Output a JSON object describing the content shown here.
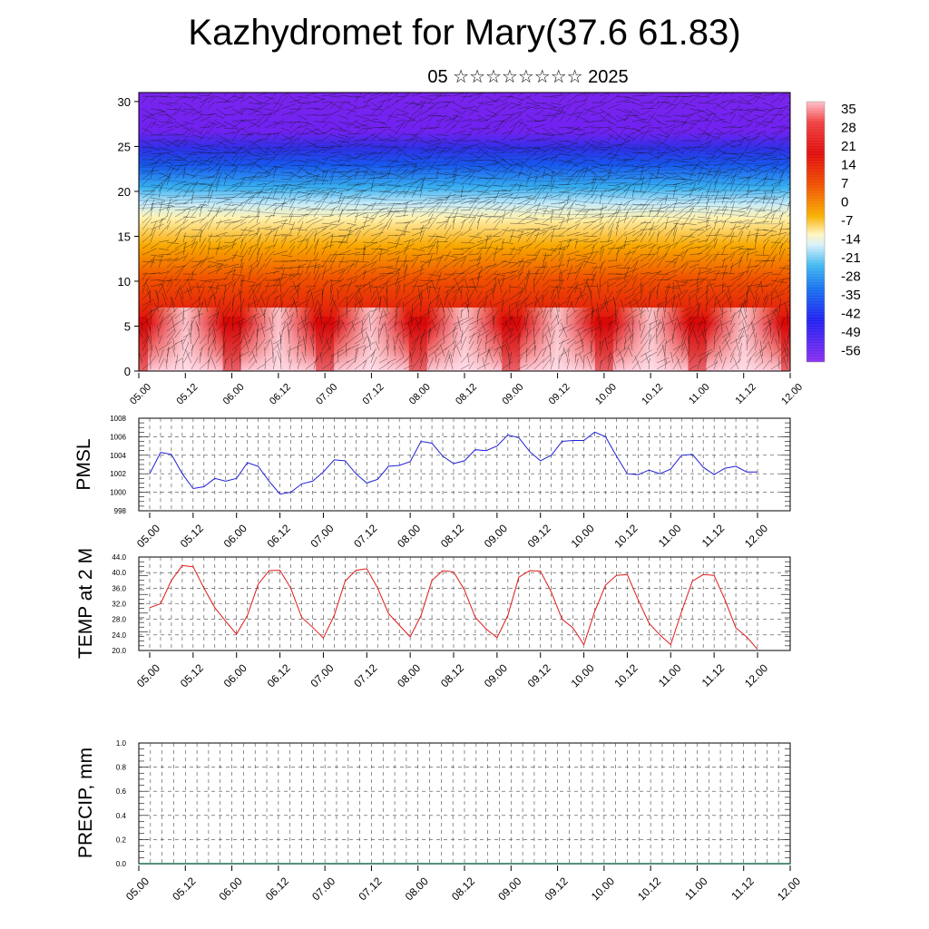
{
  "title": "Kazhydromet for Mary(37.6 61.83)",
  "subtitle": "05 ☆☆☆☆☆☆☆☆ 2025",
  "time_ticks": [
    "05.00",
    "05.12",
    "06.00",
    "06.12",
    "07.00",
    "07.12",
    "08.00",
    "08.12",
    "09.00",
    "09.12",
    "10.00",
    "10.12",
    "11.00",
    "11.12",
    "12.00"
  ],
  "colors": {
    "pmsl_line": "#1f1fd6",
    "temp_line": "#e01818",
    "precip_line": "#1f6b4f"
  },
  "chart_data": [
    {
      "type": "heatmap",
      "name": "temperature-wind cross-section",
      "x_ticks": [
        "05.00",
        "05.12",
        "06.00",
        "06.12",
        "07.00",
        "07.12",
        "08.00",
        "08.12",
        "09.00",
        "09.12",
        "10.00",
        "10.12",
        "11.00",
        "11.12",
        "12.00"
      ],
      "y_ticks": [
        0,
        5,
        10,
        15,
        20,
        25,
        30
      ],
      "ylim": [
        0,
        31
      ],
      "colorbar_labels": [
        "35",
        "28",
        "21",
        "14",
        "7",
        "0",
        "-7",
        "-14",
        "-21",
        "-28",
        "-35",
        "-42",
        "-49",
        "-56"
      ],
      "colorbar_range": [
        -60,
        38
      ],
      "overlay": "wind barbs",
      "approx_temperature_by_level": [
        {
          "level": 0,
          "value": 35
        },
        {
          "level": 5,
          "value": 26
        },
        {
          "level": 10,
          "value": 17
        },
        {
          "level": 15,
          "value": 3
        },
        {
          "level": 18,
          "value": -12
        },
        {
          "level": 20,
          "value": -30
        },
        {
          "level": 23,
          "value": -45
        },
        {
          "level": 25,
          "value": -54
        },
        {
          "level": 31,
          "value": -60
        }
      ]
    },
    {
      "type": "line",
      "ylabel": "PMSL",
      "ylim": [
        998,
        1008
      ],
      "y_ticks": [
        "998",
        "1000",
        "1002",
        "1004",
        "1006",
        "1008"
      ],
      "x_ticks": [
        "05.00",
        "05.12",
        "06.00",
        "06.12",
        "07.00",
        "07.12",
        "08.00",
        "08.12",
        "09.00",
        "09.12",
        "10.00",
        "10.12",
        "11.00",
        "11.12",
        "12.00"
      ],
      "x_range": [
        0,
        168
      ],
      "x": [
        0,
        3,
        6,
        9,
        12,
        15,
        18,
        21,
        24,
        27,
        30,
        33,
        36,
        39,
        42,
        45,
        48,
        51,
        54,
        57,
        60,
        63,
        66,
        69,
        72,
        75,
        78,
        81,
        84,
        87,
        90,
        93,
        96,
        99,
        102,
        105,
        108,
        111,
        114,
        117,
        120,
        123,
        126,
        129,
        132,
        135,
        138,
        141,
        144,
        147,
        150,
        153,
        156,
        159,
        162,
        165,
        168
      ],
      "values": [
        1002.0,
        1004.3,
        1004.1,
        1002.0,
        1000.4,
        1000.6,
        1001.5,
        1001.2,
        1001.5,
        1003.2,
        1002.8,
        1001.2,
        999.8,
        1000.0,
        1000.9,
        1001.2,
        1002.2,
        1003.5,
        1003.4,
        1002.0,
        1001.0,
        1001.4,
        1002.8,
        1002.9,
        1003.3,
        1005.5,
        1005.3,
        1003.9,
        1003.1,
        1003.4,
        1004.6,
        1004.5,
        1005.0,
        1006.2,
        1005.9,
        1004.4,
        1003.4,
        1004.0,
        1005.5,
        1005.6,
        1005.6,
        1006.5,
        1006.0,
        1003.9,
        1002.0,
        1001.9,
        1002.4,
        1002.0,
        1002.5,
        1004.0,
        1004.1,
        1002.7,
        1001.9,
        1002.6,
        1002.8,
        1002.2,
        1002.2
      ]
    },
    {
      "type": "line",
      "ylabel": "TEMP at 2 M",
      "ylim": [
        20,
        44
      ],
      "y_ticks": [
        "20.0",
        "24.0",
        "28.0",
        "32.0",
        "36.0",
        "40.0",
        "44.0"
      ],
      "x_ticks": [
        "05.00",
        "05.12",
        "06.00",
        "06.12",
        "07.00",
        "07.12",
        "08.00",
        "08.12",
        "09.00",
        "09.12",
        "10.00",
        "10.12",
        "11.00",
        "11.12",
        "12.00"
      ],
      "x_range": [
        0,
        168
      ],
      "x": [
        0,
        3,
        6,
        9,
        12,
        15,
        18,
        21,
        24,
        27,
        30,
        33,
        36,
        39,
        42,
        45,
        48,
        51,
        54,
        57,
        60,
        63,
        66,
        69,
        72,
        75,
        78,
        81,
        84,
        87,
        90,
        93,
        96,
        99,
        102,
        105,
        108,
        111,
        114,
        117,
        120,
        123,
        126,
        129,
        132,
        135,
        138,
        141,
        144,
        147,
        150,
        153,
        156,
        159,
        162,
        165,
        168
      ],
      "values": [
        31.0,
        32.0,
        38.0,
        41.8,
        41.5,
        36.0,
        31.0,
        27.5,
        24.2,
        29.0,
        37.0,
        40.5,
        40.6,
        36.0,
        28.5,
        26.0,
        23.2,
        29.0,
        37.8,
        40.6,
        41.0,
        36.0,
        29.5,
        26.5,
        23.5,
        29.0,
        38.0,
        40.5,
        40.2,
        35.5,
        28.5,
        25.5,
        23.3,
        29.0,
        38.8,
        40.5,
        40.4,
        35.0,
        28.0,
        25.8,
        21.5,
        30.0,
        36.8,
        39.3,
        39.5,
        33.0,
        27.0,
        24.0,
        21.5,
        30.0,
        37.8,
        39.5,
        39.3,
        33.0,
        25.8,
        23.5,
        20.3
      ]
    },
    {
      "type": "line",
      "ylabel": "PRECIP, mm",
      "ylim": [
        0,
        1
      ],
      "y_ticks": [
        "0.0",
        "0.2",
        "0.4",
        "0.6",
        "0.8",
        "1.0"
      ],
      "x_ticks": [
        "05.00",
        "05.12",
        "06.00",
        "06.12",
        "07.00",
        "07.12",
        "08.00",
        "08.12",
        "09.00",
        "09.12",
        "10.00",
        "10.12",
        "11.00",
        "11.12",
        "12.00"
      ],
      "x_range": [
        0,
        168
      ],
      "x": [
        0,
        168
      ],
      "values": [
        0,
        0
      ]
    }
  ]
}
